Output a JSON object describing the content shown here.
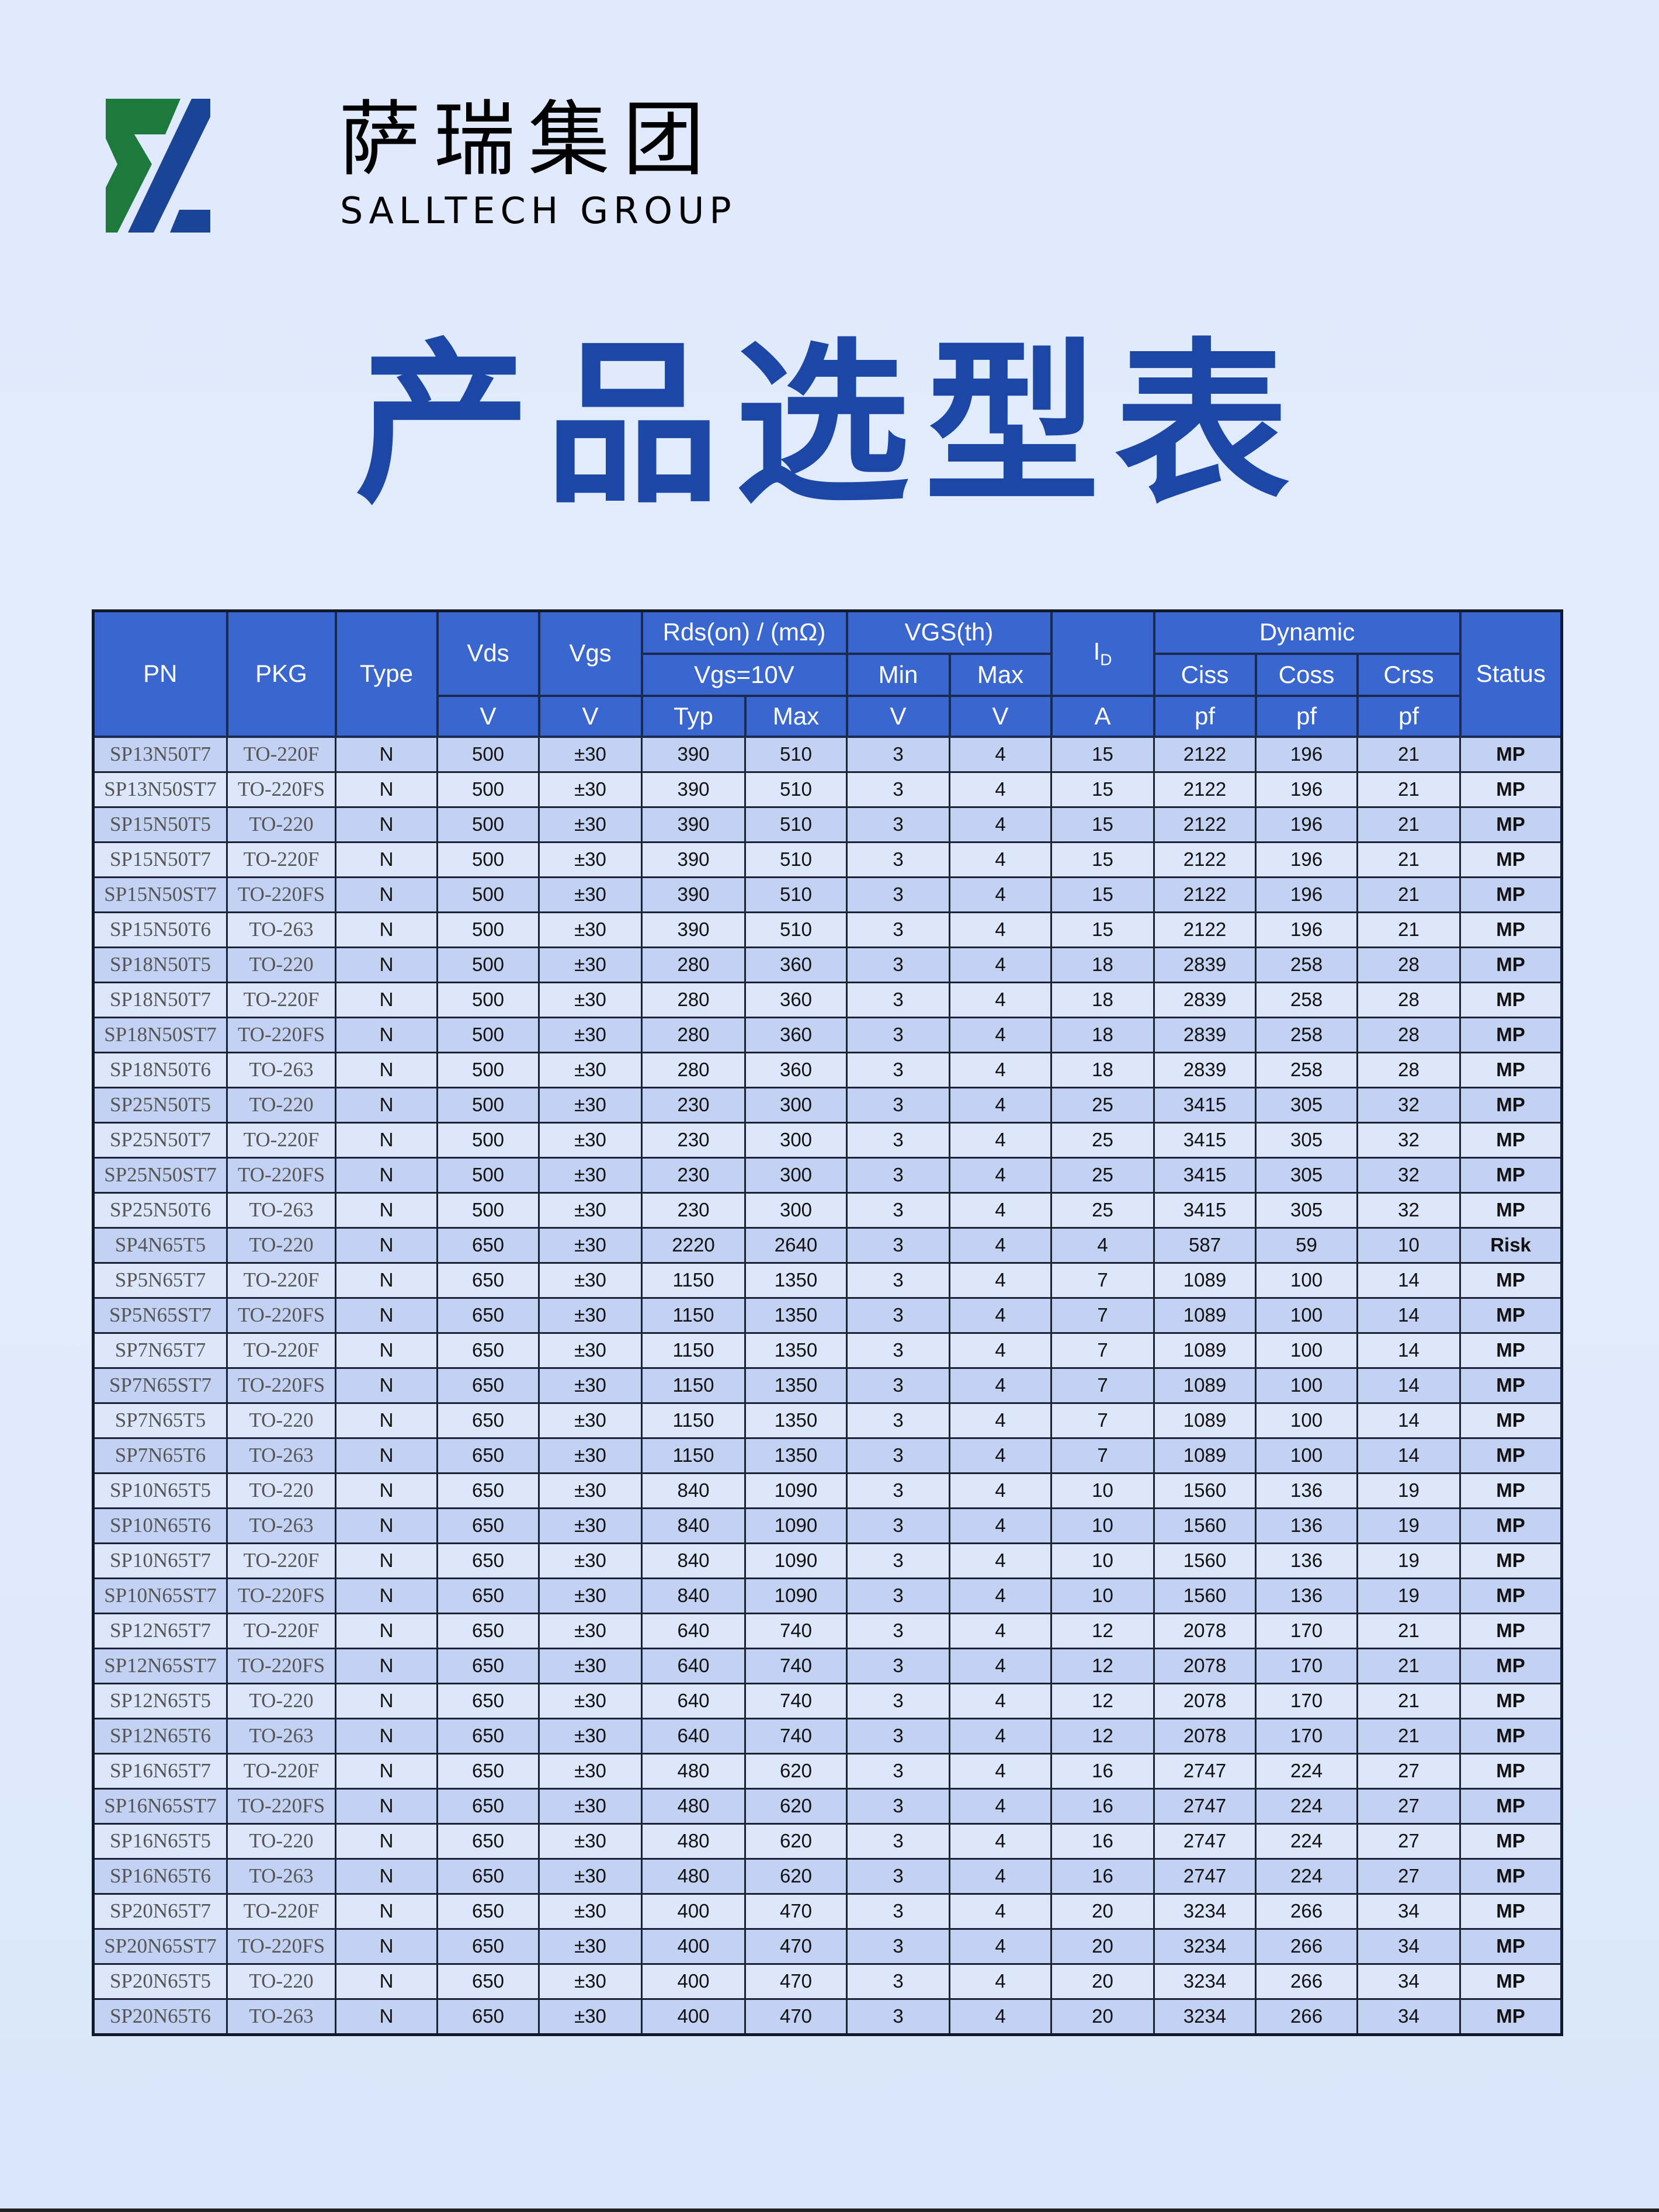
{
  "logo": {
    "cn": "萨瑞集团",
    "en": "SALLTECH GROUP",
    "green": "#1e7a3c",
    "blue": "#1a4597"
  },
  "title": "产品选型表",
  "header": {
    "pn": "PN",
    "pkg": "PKG",
    "type": "Type",
    "vds": "Vds",
    "vgs": "Vgs",
    "rds": "Rds(on) / (mΩ)",
    "rds_cond": "Vgs=10V",
    "vgsth": "VGS(th)",
    "min": "Min",
    "max": "Max",
    "id": "I",
    "id_sub": "D",
    "dynamic": "Dynamic",
    "ciss": "Ciss",
    "coss": "Coss",
    "crss": "Crss",
    "status": "Status",
    "units": [
      "V",
      "V",
      "Typ",
      "Max",
      "V",
      "V",
      "A",
      "pf",
      "pf",
      "pf"
    ]
  },
  "rows": [
    [
      "SP13N50T7",
      "TO-220F",
      "N",
      "500",
      "±30",
      "390",
      "510",
      "3",
      "4",
      "15",
      "2122",
      "196",
      "21",
      "MP"
    ],
    [
      "SP13N50ST7",
      "TO-220FS",
      "N",
      "500",
      "±30",
      "390",
      "510",
      "3",
      "4",
      "15",
      "2122",
      "196",
      "21",
      "MP"
    ],
    [
      "SP15N50T5",
      "TO-220",
      "N",
      "500",
      "±30",
      "390",
      "510",
      "3",
      "4",
      "15",
      "2122",
      "196",
      "21",
      "MP"
    ],
    [
      "SP15N50T7",
      "TO-220F",
      "N",
      "500",
      "±30",
      "390",
      "510",
      "3",
      "4",
      "15",
      "2122",
      "196",
      "21",
      "MP"
    ],
    [
      "SP15N50ST7",
      "TO-220FS",
      "N",
      "500",
      "±30",
      "390",
      "510",
      "3",
      "4",
      "15",
      "2122",
      "196",
      "21",
      "MP"
    ],
    [
      "SP15N50T6",
      "TO-263",
      "N",
      "500",
      "±30",
      "390",
      "510",
      "3",
      "4",
      "15",
      "2122",
      "196",
      "21",
      "MP"
    ],
    [
      "SP18N50T5",
      "TO-220",
      "N",
      "500",
      "±30",
      "280",
      "360",
      "3",
      "4",
      "18",
      "2839",
      "258",
      "28",
      "MP"
    ],
    [
      "SP18N50T7",
      "TO-220F",
      "N",
      "500",
      "±30",
      "280",
      "360",
      "3",
      "4",
      "18",
      "2839",
      "258",
      "28",
      "MP"
    ],
    [
      "SP18N50ST7",
      "TO-220FS",
      "N",
      "500",
      "±30",
      "280",
      "360",
      "3",
      "4",
      "18",
      "2839",
      "258",
      "28",
      "MP"
    ],
    [
      "SP18N50T6",
      "TO-263",
      "N",
      "500",
      "±30",
      "280",
      "360",
      "3",
      "4",
      "18",
      "2839",
      "258",
      "28",
      "MP"
    ],
    [
      "SP25N50T5",
      "TO-220",
      "N",
      "500",
      "±30",
      "230",
      "300",
      "3",
      "4",
      "25",
      "3415",
      "305",
      "32",
      "MP"
    ],
    [
      "SP25N50T7",
      "TO-220F",
      "N",
      "500",
      "±30",
      "230",
      "300",
      "3",
      "4",
      "25",
      "3415",
      "305",
      "32",
      "MP"
    ],
    [
      "SP25N50ST7",
      "TO-220FS",
      "N",
      "500",
      "±30",
      "230",
      "300",
      "3",
      "4",
      "25",
      "3415",
      "305",
      "32",
      "MP"
    ],
    [
      "SP25N50T6",
      "TO-263",
      "N",
      "500",
      "±30",
      "230",
      "300",
      "3",
      "4",
      "25",
      "3415",
      "305",
      "32",
      "MP"
    ],
    [
      "SP4N65T5",
      "TO-220",
      "N",
      "650",
      "±30",
      "2220",
      "2640",
      "3",
      "4",
      "4",
      "587",
      "59",
      "10",
      "Risk"
    ],
    [
      "SP5N65T7",
      "TO-220F",
      "N",
      "650",
      "±30",
      "1150",
      "1350",
      "3",
      "4",
      "7",
      "1089",
      "100",
      "14",
      "MP"
    ],
    [
      "SP5N65ST7",
      "TO-220FS",
      "N",
      "650",
      "±30",
      "1150",
      "1350",
      "3",
      "4",
      "7",
      "1089",
      "100",
      "14",
      "MP"
    ],
    [
      "SP7N65T7",
      "TO-220F",
      "N",
      "650",
      "±30",
      "1150",
      "1350",
      "3",
      "4",
      "7",
      "1089",
      "100",
      "14",
      "MP"
    ],
    [
      "SP7N65ST7",
      "TO-220FS",
      "N",
      "650",
      "±30",
      "1150",
      "1350",
      "3",
      "4",
      "7",
      "1089",
      "100",
      "14",
      "MP"
    ],
    [
      "SP7N65T5",
      "TO-220",
      "N",
      "650",
      "±30",
      "1150",
      "1350",
      "3",
      "4",
      "7",
      "1089",
      "100",
      "14",
      "MP"
    ],
    [
      "SP7N65T6",
      "TO-263",
      "N",
      "650",
      "±30",
      "1150",
      "1350",
      "3",
      "4",
      "7",
      "1089",
      "100",
      "14",
      "MP"
    ],
    [
      "SP10N65T5",
      "TO-220",
      "N",
      "650",
      "±30",
      "840",
      "1090",
      "3",
      "4",
      "10",
      "1560",
      "136",
      "19",
      "MP"
    ],
    [
      "SP10N65T6",
      "TO-263",
      "N",
      "650",
      "±30",
      "840",
      "1090",
      "3",
      "4",
      "10",
      "1560",
      "136",
      "19",
      "MP"
    ],
    [
      "SP10N65T7",
      "TO-220F",
      "N",
      "650",
      "±30",
      "840",
      "1090",
      "3",
      "4",
      "10",
      "1560",
      "136",
      "19",
      "MP"
    ],
    [
      "SP10N65ST7",
      "TO-220FS",
      "N",
      "650",
      "±30",
      "840",
      "1090",
      "3",
      "4",
      "10",
      "1560",
      "136",
      "19",
      "MP"
    ],
    [
      "SP12N65T7",
      "TO-220F",
      "N",
      "650",
      "±30",
      "640",
      "740",
      "3",
      "4",
      "12",
      "2078",
      "170",
      "21",
      "MP"
    ],
    [
      "SP12N65ST7",
      "TO-220FS",
      "N",
      "650",
      "±30",
      "640",
      "740",
      "3",
      "4",
      "12",
      "2078",
      "170",
      "21",
      "MP"
    ],
    [
      "SP12N65T5",
      "TO-220",
      "N",
      "650",
      "±30",
      "640",
      "740",
      "3",
      "4",
      "12",
      "2078",
      "170",
      "21",
      "MP"
    ],
    [
      "SP12N65T6",
      "TO-263",
      "N",
      "650",
      "±30",
      "640",
      "740",
      "3",
      "4",
      "12",
      "2078",
      "170",
      "21",
      "MP"
    ],
    [
      "SP16N65T7",
      "TO-220F",
      "N",
      "650",
      "±30",
      "480",
      "620",
      "3",
      "4",
      "16",
      "2747",
      "224",
      "27",
      "MP"
    ],
    [
      "SP16N65ST7",
      "TO-220FS",
      "N",
      "650",
      "±30",
      "480",
      "620",
      "3",
      "4",
      "16",
      "2747",
      "224",
      "27",
      "MP"
    ],
    [
      "SP16N65T5",
      "TO-220",
      "N",
      "650",
      "±30",
      "480",
      "620",
      "3",
      "4",
      "16",
      "2747",
      "224",
      "27",
      "MP"
    ],
    [
      "SP16N65T6",
      "TO-263",
      "N",
      "650",
      "±30",
      "480",
      "620",
      "3",
      "4",
      "16",
      "2747",
      "224",
      "27",
      "MP"
    ],
    [
      "SP20N65T7",
      "TO-220F",
      "N",
      "650",
      "±30",
      "400",
      "470",
      "3",
      "4",
      "20",
      "3234",
      "266",
      "34",
      "MP"
    ],
    [
      "SP20N65ST7",
      "TO-220FS",
      "N",
      "650",
      "±30",
      "400",
      "470",
      "3",
      "4",
      "20",
      "3234",
      "266",
      "34",
      "MP"
    ],
    [
      "SP20N65T5",
      "TO-220",
      "N",
      "650",
      "±30",
      "400",
      "470",
      "3",
      "4",
      "20",
      "3234",
      "266",
      "34",
      "MP"
    ],
    [
      "SP20N65T6",
      "TO-263",
      "N",
      "650",
      "±30",
      "400",
      "470",
      "3",
      "4",
      "20",
      "3234",
      "266",
      "34",
      "MP"
    ]
  ]
}
